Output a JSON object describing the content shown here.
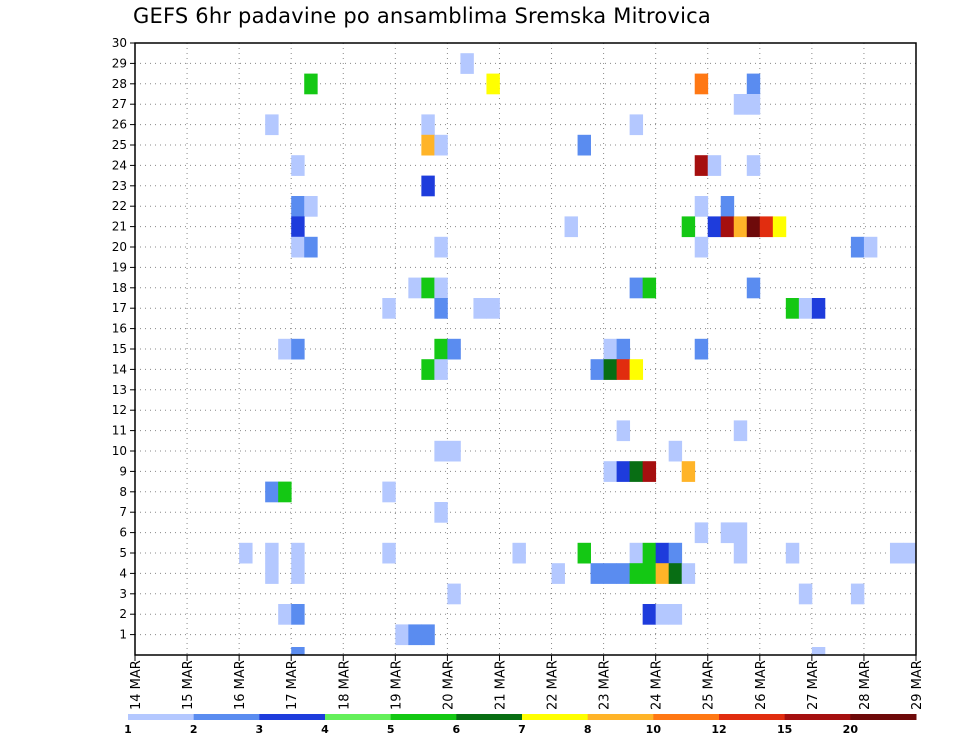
{
  "chart_data": {
    "type": "heatmap",
    "title": "GEFS 6hr padavine po ansamblima Sremska Mitrovica",
    "xlabel": "",
    "ylabel": "",
    "x_tick_labels": [
      "14 MAR",
      "15 MAR",
      "16 MAR",
      "17 MAR",
      "18 MAR",
      "19 MAR",
      "20 MAR",
      "21 MAR",
      "22 MAR",
      "23 MAR",
      "24 MAR",
      "25 MAR",
      "26 MAR",
      "27 MAR",
      "28 MAR",
      "29 MAR"
    ],
    "ylim": [
      0,
      30
    ],
    "y_ticks": [
      1,
      2,
      3,
      4,
      5,
      6,
      7,
      8,
      9,
      10,
      11,
      12,
      13,
      14,
      15,
      16,
      17,
      18,
      19,
      20,
      21,
      22,
      23,
      24,
      25,
      26,
      27,
      28,
      29,
      30
    ],
    "grid": true,
    "time_step_hours": 6,
    "legend_position": "bottom",
    "colorbar": {
      "ticks": [
        "1",
        "2",
        "3",
        "4",
        "5",
        "6",
        "7",
        "8",
        "10",
        "12",
        "15",
        "20"
      ],
      "colors": [
        "#b4c8ff",
        "#5a8cf0",
        "#1e3cdc",
        "#64f05a",
        "#14c814",
        "#086e14",
        "#ffff00",
        "#ffb428",
        "#ff7814",
        "#e12d0f",
        "#a50f0f",
        "#6e0a0a"
      ]
    },
    "cells": [
      {
        "member": 29,
        "step": 25,
        "value": 1
      },
      {
        "member": 28,
        "step": 13,
        "value": 5
      },
      {
        "member": 28,
        "step": 27,
        "value": 7
      },
      {
        "member": 28,
        "step": 43,
        "value": 10
      },
      {
        "member": 28,
        "step": 47,
        "value": 2
      },
      {
        "member": 27,
        "step": 46,
        "value": 1
      },
      {
        "member": 27,
        "step": 47,
        "value": 1
      },
      {
        "member": 26,
        "step": 10,
        "value": 1
      },
      {
        "member": 26,
        "step": 22,
        "value": 1
      },
      {
        "member": 26,
        "step": 38,
        "value": 1
      },
      {
        "member": 25,
        "step": 22,
        "value": 8
      },
      {
        "member": 25,
        "step": 23,
        "value": 1
      },
      {
        "member": 25,
        "step": 34,
        "value": 2
      },
      {
        "member": 24,
        "step": 12,
        "value": 1
      },
      {
        "member": 24,
        "step": 43,
        "value": 15
      },
      {
        "member": 24,
        "step": 44,
        "value": 1
      },
      {
        "member": 24,
        "step": 47,
        "value": 1
      },
      {
        "member": 23,
        "step": 22,
        "value": 3
      },
      {
        "member": 22,
        "step": 12,
        "value": 2
      },
      {
        "member": 22,
        "step": 13,
        "value": 1
      },
      {
        "member": 22,
        "step": 43,
        "value": 1
      },
      {
        "member": 22,
        "step": 45,
        "value": 2
      },
      {
        "member": 21,
        "step": 12,
        "value": 3
      },
      {
        "member": 21,
        "step": 33,
        "value": 1
      },
      {
        "member": 21,
        "step": 42,
        "value": 5
      },
      {
        "member": 21,
        "step": 44,
        "value": 3
      },
      {
        "member": 21,
        "step": 45,
        "value": 15
      },
      {
        "member": 21,
        "step": 46,
        "value": 8
      },
      {
        "member": 21,
        "step": 47,
        "value": 20
      },
      {
        "member": 21,
        "step": 48,
        "value": 12
      },
      {
        "member": 21,
        "step": 49,
        "value": 7
      },
      {
        "member": 20,
        "step": 12,
        "value": 1
      },
      {
        "member": 20,
        "step": 13,
        "value": 2
      },
      {
        "member": 20,
        "step": 23,
        "value": 1
      },
      {
        "member": 20,
        "step": 43,
        "value": 1
      },
      {
        "member": 20,
        "step": 55,
        "value": 2
      },
      {
        "member": 20,
        "step": 56,
        "value": 1
      },
      {
        "member": 18,
        "step": 21,
        "value": 1
      },
      {
        "member": 18,
        "step": 22,
        "value": 5
      },
      {
        "member": 18,
        "step": 23,
        "value": 1
      },
      {
        "member": 18,
        "step": 38,
        "value": 2
      },
      {
        "member": 18,
        "step": 39,
        "value": 5
      },
      {
        "member": 18,
        "step": 47,
        "value": 2
      },
      {
        "member": 17,
        "step": 19,
        "value": 1
      },
      {
        "member": 17,
        "step": 23,
        "value": 2
      },
      {
        "member": 17,
        "step": 26,
        "value": 1
      },
      {
        "member": 17,
        "step": 27,
        "value": 1
      },
      {
        "member": 17,
        "step": 50,
        "value": 5
      },
      {
        "member": 17,
        "step": 51,
        "value": 1
      },
      {
        "member": 17,
        "step": 52,
        "value": 3
      },
      {
        "member": 15,
        "step": 11,
        "value": 1
      },
      {
        "member": 15,
        "step": 12,
        "value": 2
      },
      {
        "member": 15,
        "step": 23,
        "value": 5
      },
      {
        "member": 15,
        "step": 24,
        "value": 2
      },
      {
        "member": 15,
        "step": 36,
        "value": 1
      },
      {
        "member": 15,
        "step": 37,
        "value": 2
      },
      {
        "member": 15,
        "step": 43,
        "value": 2
      },
      {
        "member": 14,
        "step": 22,
        "value": 5
      },
      {
        "member": 14,
        "step": 23,
        "value": 1
      },
      {
        "member": 14,
        "step": 35,
        "value": 2
      },
      {
        "member": 14,
        "step": 36,
        "value": 6
      },
      {
        "member": 14,
        "step": 37,
        "value": 12
      },
      {
        "member": 14,
        "step": 38,
        "value": 7
      },
      {
        "member": 11,
        "step": 37,
        "value": 1
      },
      {
        "member": 11,
        "step": 46,
        "value": 1
      },
      {
        "member": 10,
        "step": 23,
        "value": 1
      },
      {
        "member": 10,
        "step": 24,
        "value": 1
      },
      {
        "member": 10,
        "step": 41,
        "value": 1
      },
      {
        "member": 9,
        "step": 36,
        "value": 1
      },
      {
        "member": 9,
        "step": 37,
        "value": 3
      },
      {
        "member": 9,
        "step": 38,
        "value": 6
      },
      {
        "member": 9,
        "step": 39,
        "value": 15
      },
      {
        "member": 9,
        "step": 42,
        "value": 8
      },
      {
        "member": 8,
        "step": 10,
        "value": 2
      },
      {
        "member": 8,
        "step": 11,
        "value": 5
      },
      {
        "member": 8,
        "step": 19,
        "value": 1
      },
      {
        "member": 7,
        "step": 23,
        "value": 1
      },
      {
        "member": 6,
        "step": 43,
        "value": 1
      },
      {
        "member": 6,
        "step": 45,
        "value": 1
      },
      {
        "member": 6,
        "step": 46,
        "value": 1
      },
      {
        "member": 5,
        "step": 8,
        "value": 1
      },
      {
        "member": 5,
        "step": 10,
        "value": 1
      },
      {
        "member": 5,
        "step": 12,
        "value": 1
      },
      {
        "member": 5,
        "step": 19,
        "value": 1
      },
      {
        "member": 5,
        "step": 29,
        "value": 1
      },
      {
        "member": 5,
        "step": 34,
        "value": 5
      },
      {
        "member": 5,
        "step": 38,
        "value": 1
      },
      {
        "member": 5,
        "step": 39,
        "value": 5
      },
      {
        "member": 5,
        "step": 40,
        "value": 3
      },
      {
        "member": 5,
        "step": 41,
        "value": 2
      },
      {
        "member": 5,
        "step": 46,
        "value": 1
      },
      {
        "member": 5,
        "step": 50,
        "value": 1
      },
      {
        "member": 5,
        "step": 58,
        "value": 1
      },
      {
        "member": 5,
        "step": 59,
        "value": 1
      },
      {
        "member": 4,
        "step": 10,
        "value": 1
      },
      {
        "member": 4,
        "step": 12,
        "value": 1
      },
      {
        "member": 4,
        "step": 32,
        "value": 1
      },
      {
        "member": 4,
        "step": 35,
        "value": 2
      },
      {
        "member": 4,
        "step": 36,
        "value": 2
      },
      {
        "member": 4,
        "step": 37,
        "value": 2
      },
      {
        "member": 4,
        "step": 38,
        "value": 5
      },
      {
        "member": 4,
        "step": 39,
        "value": 5
      },
      {
        "member": 4,
        "step": 40,
        "value": 8
      },
      {
        "member": 4,
        "step": 41,
        "value": 6
      },
      {
        "member": 4,
        "step": 42,
        "value": 1
      },
      {
        "member": 3,
        "step": 24,
        "value": 1
      },
      {
        "member": 3,
        "step": 51,
        "value": 1
      },
      {
        "member": 3,
        "step": 55,
        "value": 1
      },
      {
        "member": 2,
        "step": 11,
        "value": 1
      },
      {
        "member": 2,
        "step": 12,
        "value": 2
      },
      {
        "member": 2,
        "step": 39,
        "value": 3
      },
      {
        "member": 2,
        "step": 40,
        "value": 1
      },
      {
        "member": 2,
        "step": 41,
        "value": 1
      },
      {
        "member": 1,
        "step": 20,
        "value": 1
      },
      {
        "member": 1,
        "step": 21,
        "value": 2
      },
      {
        "member": 1,
        "step": 22,
        "value": 2
      },
      {
        "member": 0,
        "step": 12,
        "value": 2
      },
      {
        "member": 0,
        "step": 52,
        "value": 1
      }
    ]
  }
}
